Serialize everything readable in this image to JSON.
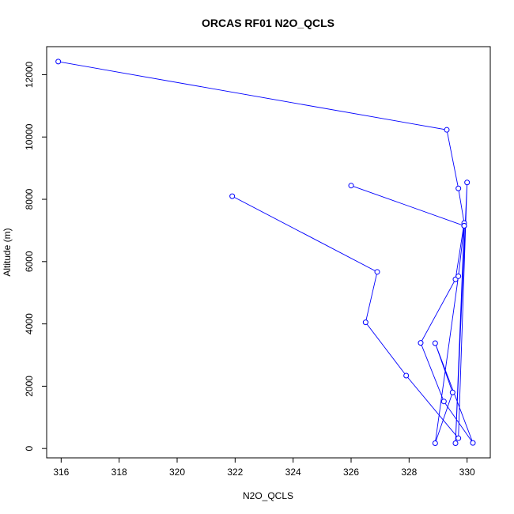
{
  "chart_data": {
    "type": "line",
    "title": "ORCAS RF01 N2O_QCLS",
    "xlabel": "N2O_QCLS",
    "ylabel": "Altitude (m)",
    "xlim": [
      315.5,
      330.8
    ],
    "ylim": [
      -300,
      12900
    ],
    "xticks": [
      316,
      318,
      320,
      322,
      324,
      326,
      328,
      330
    ],
    "yticks": [
      0,
      2000,
      4000,
      6000,
      8000,
      10000,
      12000
    ],
    "grid": false,
    "markers": "open-circle",
    "color": "#0000ff",
    "series": [
      {
        "x": [
          315.9,
          329.3,
          329.7,
          329.9,
          329.6,
          328.4,
          329.2,
          330.2,
          328.9,
          329.5,
          328.9,
          329.7,
          329.9,
          326.0,
          329.9,
          329.6,
          330.0,
          329.7,
          327.9,
          326.5,
          326.9,
          321.9
        ],
        "y": [
          12420,
          10230,
          8350,
          7240,
          5430,
          3390,
          1510,
          180,
          3380,
          1800,
          170,
          5530,
          7150,
          8440,
          7150,
          170,
          8540,
          330,
          2340,
          4050,
          5670,
          8100
        ]
      }
    ]
  }
}
